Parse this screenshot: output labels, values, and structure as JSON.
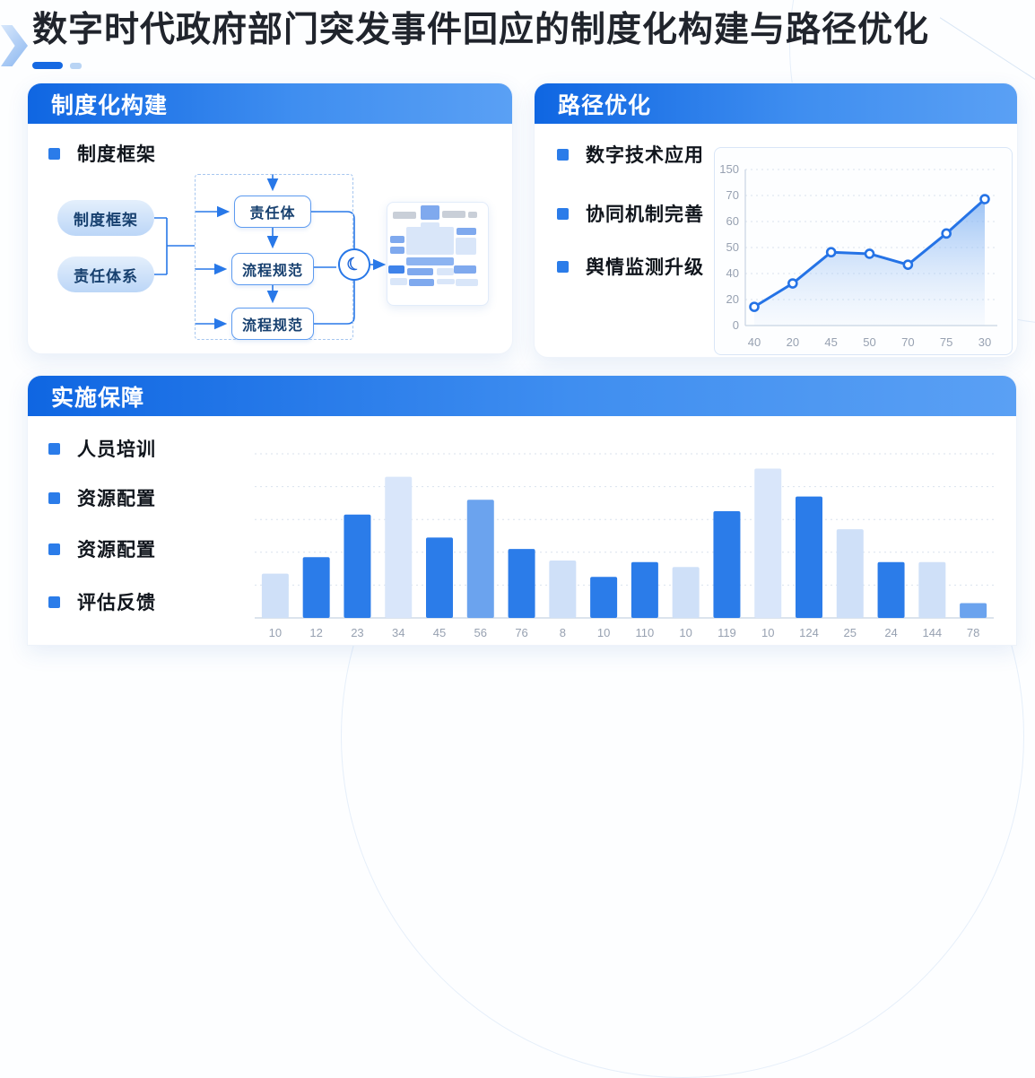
{
  "page": {
    "title": "数字时代政府部门突发事件回应的制度化构建与路径优化"
  },
  "cards": {
    "institution": {
      "header": "制度化构建",
      "bullets": [
        "制度框架"
      ],
      "flow": {
        "pills": [
          "制度框架",
          "责任体系"
        ],
        "boxes": [
          "责任体",
          "流程规范",
          "流程规范"
        ],
        "moon_glyph": "☾"
      }
    },
    "path": {
      "header": "路径优化",
      "bullets": [
        "数字技术应用",
        "协同机制完善",
        "舆情监测升级"
      ]
    },
    "implementation": {
      "header": "实施保障",
      "bullets": [
        "人员培训",
        "资源配置",
        "资源配置",
        "评估反馈"
      ]
    }
  },
  "colors": {
    "accent": "#1a6fe6",
    "header_gradient_start": "#0f66e2",
    "header_gradient_end": "#5aa0f4",
    "bullet_square": "#2b7ce9",
    "line_color": "#2573e6"
  },
  "chart_data": [
    {
      "type": "line",
      "title": "",
      "x": [
        "40",
        "20",
        "45",
        "50",
        "70",
        "75",
        "30"
      ],
      "y_tick_labels_top_to_bottom": [
        "150",
        "70",
        "60",
        "50",
        "40",
        "20",
        "0"
      ],
      "values_axis_estimate": [
        13,
        30,
        47,
        47,
        43,
        55,
        68
      ],
      "values_pct_of_plot_height": [
        12,
        27,
        47,
        46,
        39,
        59,
        81
      ],
      "line_color": "#2573e6",
      "marker": "white-fill-blue-ring",
      "area_fill": "blue-gradient-fade",
      "grid": "dotted-horizontal",
      "legend": false
    },
    {
      "type": "bar",
      "title": "",
      "categories": [
        "10",
        "12",
        "23",
        "34",
        "45",
        "56",
        "76",
        "8",
        "10",
        "110",
        "10",
        "119",
        "10",
        "124",
        "25",
        "24",
        "144",
        "78"
      ],
      "values_pct_of_plot_height": [
        27,
        37,
        63,
        86,
        49,
        72,
        42,
        35,
        25,
        34,
        31,
        65,
        91,
        74,
        54,
        34,
        34,
        9
      ],
      "color_keys": [
        "light",
        "strong",
        "strong",
        "lighter",
        "strong",
        "medium",
        "strong",
        "light",
        "strong",
        "strong",
        "light",
        "strong",
        "lighter",
        "strong",
        "light",
        "strong",
        "light",
        "medium"
      ],
      "palette": {
        "strong": "#2b7ce9",
        "medium": "#6ba3ee",
        "light": "#cfe0f8",
        "lighter": "#d9e6fa"
      },
      "grid": "dotted-horizontal",
      "y_axis_labels": "none",
      "legend": false
    }
  ]
}
